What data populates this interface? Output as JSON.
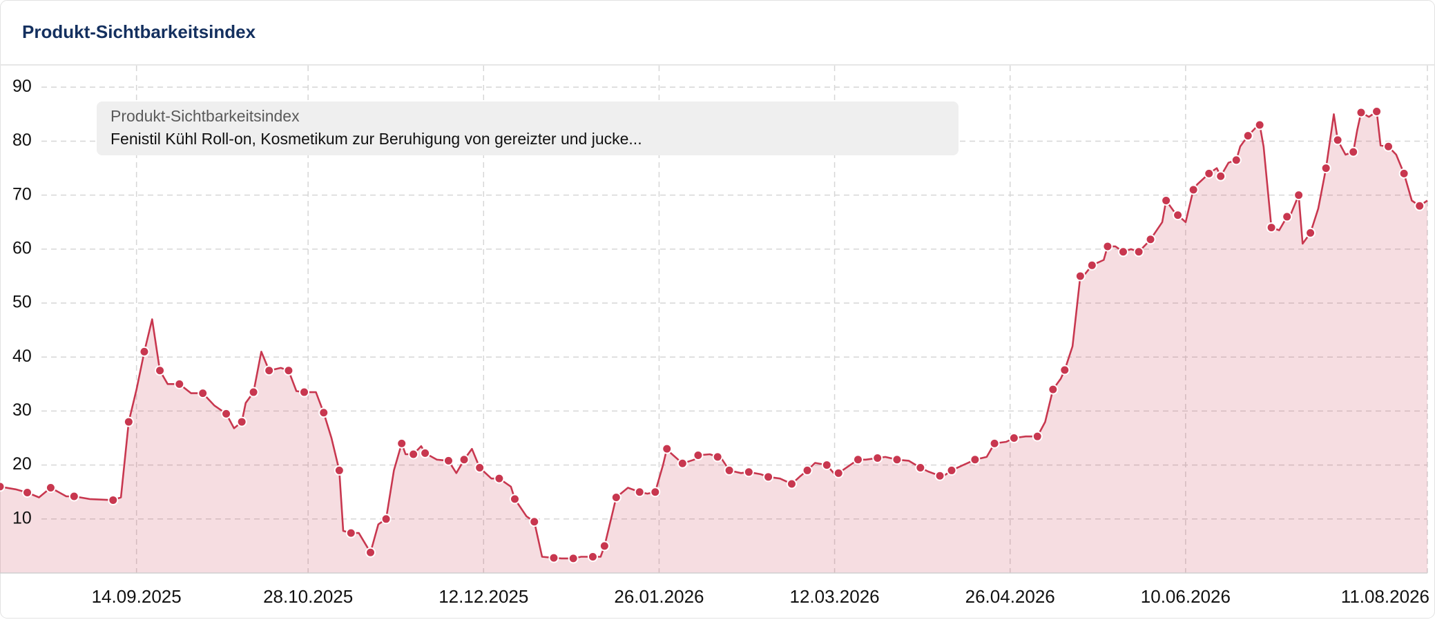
{
  "chart_data": {
    "type": "area",
    "title": "Produkt-Sichtbarkeitsindex",
    "legend_title": "Produkt-Sichtbarkeitsindex",
    "x": [
      "10.08.2025",
      "14.08.2025",
      "17.08.2025",
      "20.08.2025",
      "23.08.2025",
      "27.08.2025",
      "29.08.2025",
      "02.09.2025",
      "08.09.2025",
      "10.09.2025",
      "12.09.2025",
      "14.09.2025",
      "16.09.2025",
      "18.09.2025",
      "20.09.2025",
      "22.09.2025",
      "25.09.2025",
      "28.09.2025",
      "01.10.2025",
      "04.10.2025",
      "07.10.2025",
      "09.10.2025",
      "11.10.2025",
      "12.10.2025",
      "14.10.2025",
      "16.10.2025",
      "18.10.2025",
      "21.10.2025",
      "23.10.2025",
      "25.10.2025",
      "27.10.2025",
      "30.10.2025",
      "01.11.2025",
      "03.11.2025",
      "05.11.2025",
      "06.11.2025",
      "08.11.2025",
      "10.11.2025",
      "13.11.2025",
      "15.11.2025",
      "17.11.2025",
      "19.11.2025",
      "21.11.2025",
      "22.11.2025",
      "24.11.2025",
      "26.11.2025",
      "27.11.2025",
      "30.11.2025",
      "03.12.2025",
      "05.12.2025",
      "07.12.2025",
      "09.12.2025",
      "11.12.2025",
      "14.12.2025",
      "16.12.2025",
      "19.12.2025",
      "20.12.2025",
      "23.12.2025",
      "25.12.2025",
      "27.12.2025",
      "30.12.2025",
      "01.01.2026",
      "04.01.2026",
      "06.01.2026",
      "09.01.2026",
      "11.01.2026",
      "12.01.2026",
      "14.01.2026",
      "15.01.2026",
      "18.01.2026",
      "21.01.2026",
      "23.01.2026",
      "25.01.2026",
      "27.01.2026",
      "28.01.2026",
      "29.01.2026",
      "01.02.2026",
      "04.02.2026",
      "05.02.2026",
      "08.02.2026",
      "10.02.2026",
      "11.02.2026",
      "13.02.2026",
      "16.02.2026",
      "18.02.2026",
      "21.02.2026",
      "23.02.2026",
      "26.02.2026",
      "01.03.2026",
      "03.03.2026",
      "05.03.2026",
      "07.03.2026",
      "10.03.2026",
      "12.03.2026",
      "13.03.2026",
      "16.03.2026",
      "18.03.2026",
      "20.03.2026",
      "23.03.2026",
      "25.03.2026",
      "28.03.2026",
      "31.03.2026",
      "03.04.2026",
      "05.04.2026",
      "08.04.2026",
      "09.04.2026",
      "11.04.2026",
      "14.04.2026",
      "17.04.2026",
      "20.04.2026",
      "22.04.2026",
      "25.04.2026",
      "27.04.2026",
      "30.04.2026",
      "03.05.2026",
      "05.05.2026",
      "07.05.2026",
      "09.05.2026",
      "10.05.2026",
      "12.05.2026",
      "14.05.2026",
      "15.05.2026",
      "17.05.2026",
      "20.05.2026",
      "21.05.2026",
      "23.05.2026",
      "25.05.2026",
      "27.05.2026",
      "29.05.2026",
      "31.05.2026",
      "01.06.2026",
      "04.06.2026",
      "05.06.2026",
      "07.06.2026",
      "08.06.2026",
      "10.06.2026",
      "12.06.2026",
      "13.06.2026",
      "16.06.2026",
      "18.06.2026",
      "19.06.2026",
      "21.06.2026",
      "23.06.2026",
      "24.06.2026",
      "26.06.2026",
      "28.06.2026",
      "29.06.2026",
      "30.06.2026",
      "02.07.2026",
      "04.07.2026",
      "06.07.2026",
      "07.07.2026",
      "09.07.2026",
      "10.07.2026",
      "12.07.2026",
      "14.07.2026",
      "16.07.2026",
      "18.07.2026",
      "19.07.2026",
      "21.07.2026",
      "23.07.2026",
      "24.07.2026",
      "25.07.2026",
      "27.07.2026",
      "29.07.2026",
      "30.07.2026",
      "01.08.2026",
      "03.08.2026",
      "05.08.2026",
      "07.08.2026",
      "09.08.2026",
      "11.08.2026"
    ],
    "series": [
      {
        "name": "Fenistil Kühl Roll-on, Kosmetikum zur Beruhigung von gereizter und jucke...",
        "color": "#c8374f",
        "values": [
          16,
          15.5,
          14.9,
          14,
          15.8,
          14.2,
          14.2,
          13.7,
          13.5,
          14,
          28,
          34,
          41,
          47,
          37.5,
          35,
          35,
          33.3,
          33.3,
          31,
          29.5,
          26.8,
          28,
          31.5,
          33.5,
          41,
          37.5,
          38,
          37.5,
          33.7,
          33.5,
          33.5,
          29.7,
          25,
          19,
          7.8,
          7.4,
          7.4,
          3.8,
          9,
          10,
          19,
          24,
          22,
          22,
          23.5,
          22.2,
          21,
          20.8,
          18.5,
          21,
          23,
          19.5,
          17.5,
          17.5,
          16,
          13.7,
          10.5,
          9.5,
          3,
          2.8,
          2.7,
          2.7,
          3,
          3,
          3,
          5,
          11,
          14,
          15.8,
          15,
          14.7,
          15,
          20,
          23,
          22.2,
          20.3,
          21,
          21.8,
          22,
          21.5,
          21.2,
          19,
          18.5,
          18.7,
          18.3,
          17.8,
          17.5,
          16.5,
          17.8,
          19,
          20.4,
          20,
          18.3,
          18.5,
          20,
          21,
          21,
          21.3,
          21.5,
          21,
          20.8,
          19.5,
          18.8,
          18,
          18,
          19,
          20,
          21,
          21.5,
          24,
          24.3,
          25,
          25.3,
          25.3,
          28,
          34,
          36,
          37.6,
          42,
          55,
          55.2,
          57,
          58,
          60.5,
          60.5,
          59.5,
          60,
          59.5,
          61,
          61.8,
          65,
          69,
          67,
          66.3,
          65,
          71,
          72,
          74,
          75,
          73.5,
          76,
          76.5,
          79,
          81,
          82.5,
          83,
          79,
          64,
          63.5,
          66,
          66.5,
          70,
          61,
          63,
          67.5,
          75,
          85,
          80.2,
          77.5,
          78,
          82,
          85.3,
          84.5,
          85.5,
          79.2,
          79,
          77.5,
          74,
          69,
          68,
          69
        ]
      }
    ],
    "xlim": [
      "10.08.2025",
      "11.08.2026"
    ],
    "xticks": [
      "14.09.2025",
      "28.10.2025",
      "12.12.2025",
      "26.01.2026",
      "12.03.2026",
      "26.04.2026",
      "10.06.2026",
      "11.08.2026"
    ],
    "ylim": [
      0,
      94
    ],
    "yticks": [
      10,
      20,
      30,
      40,
      50,
      60,
      70,
      80,
      90
    ],
    "grid": true,
    "markers": true
  }
}
